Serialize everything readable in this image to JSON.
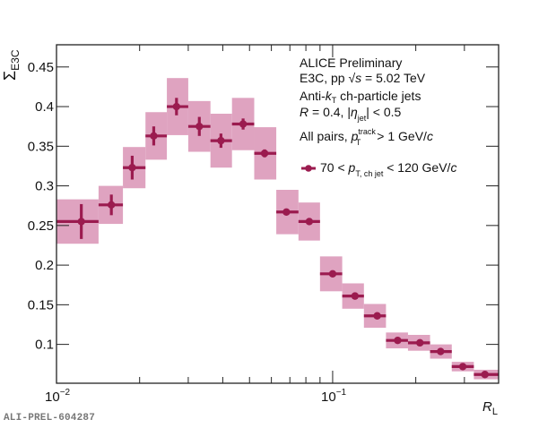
{
  "chart_data": {
    "type": "scatter",
    "title": "",
    "xlabel": "R_L",
    "ylabel": "Σ_E3C",
    "xscale": "log",
    "xlim": [
      0.01,
      0.399
    ],
    "ylim": [
      0.051,
      0.478
    ],
    "x_tick_labels": [
      {
        "value": 0.01,
        "base": "10",
        "exp": "−2"
      },
      {
        "value": 0.1,
        "base": "10",
        "exp": "−1"
      }
    ],
    "y_ticks": [
      0.1,
      0.15,
      0.2,
      0.25,
      0.3,
      0.35,
      0.4,
      0.45
    ],
    "y_tick_labels": [
      "0.1",
      "0.15",
      "0.2",
      "0.25",
      "0.3",
      "0.35",
      "0.4",
      "0.45"
    ],
    "grid": false,
    "legend_position": "top-right",
    "colors": {
      "marker": "#9b1b4f",
      "syst_box": "#dfa3c0",
      "axis": "#222222"
    },
    "series": [
      {
        "name": "70 < p_T, ch jet < 120 GeV/c",
        "bin_edges": [
          0.01,
          0.0142,
          0.0174,
          0.021,
          0.0251,
          0.03,
          0.0361,
          0.0432,
          0.052,
          0.0625,
          0.0752,
          0.09,
          0.1083,
          0.1298,
          0.156,
          0.1874,
          0.2253,
          0.27,
          0.3246,
          0.399
        ],
        "x": [
          0.0123,
          0.0158,
          0.0188,
          0.0225,
          0.0272,
          0.0329,
          0.0394,
          0.0474,
          0.0567,
          0.068,
          0.0823,
          0.1,
          0.1205,
          0.145,
          0.172,
          0.207,
          0.246,
          0.296,
          0.356
        ],
        "y": [
          0.255,
          0.276,
          0.323,
          0.363,
          0.4,
          0.375,
          0.357,
          0.378,
          0.341,
          0.267,
          0.255,
          0.189,
          0.161,
          0.136,
          0.105,
          0.102,
          0.091,
          0.072,
          0.062
        ],
        "stat_err": [
          0.022,
          0.013,
          0.015,
          0.012,
          0.011,
          0.012,
          0.009,
          0.007,
          0.005,
          0.004,
          0.003,
          0.003,
          0.002,
          0.002,
          0.002,
          0.002,
          0.002,
          0.002,
          0.002
        ],
        "syst_err": [
          0.028,
          0.024,
          0.026,
          0.03,
          0.036,
          0.032,
          0.034,
          0.033,
          0.033,
          0.028,
          0.024,
          0.022,
          0.016,
          0.015,
          0.01,
          0.01,
          0.009,
          0.006,
          0.006
        ]
      }
    ]
  },
  "annotations": {
    "line1": "ALICE Preliminary",
    "line2_pre": "E3C, pp ",
    "line2_sqrt": "√",
    "line2_s": "s",
    "line2_post": " = 5.02 TeV",
    "line3_pre": "Anti-",
    "line3_k": "k",
    "line3_sub": "T",
    "line3_post": " ch-particle jets",
    "line4_R": "R",
    "line4_mid": " = 0.4, |",
    "line4_eta": "η",
    "line4_sub": "jet",
    "line4_post": "| < 0.5",
    "line5_pre": "All pairs, ",
    "line5_p": "p",
    "line5_sup": "track",
    "line5_sub": "T",
    "line5_post": " > 1 GeV/",
    "line5_c": "c"
  },
  "legend": {
    "pre": "70 < ",
    "p": "p",
    "sub": "T, ch jet",
    "post": " < 120 GeV/",
    "c": "c"
  },
  "axes": {
    "ylabel_main": "Σ",
    "ylabel_sub": "E3C",
    "xlabel_main": "R",
    "xlabel_sub": "L"
  },
  "watermark": "ALI-PREL-604287"
}
